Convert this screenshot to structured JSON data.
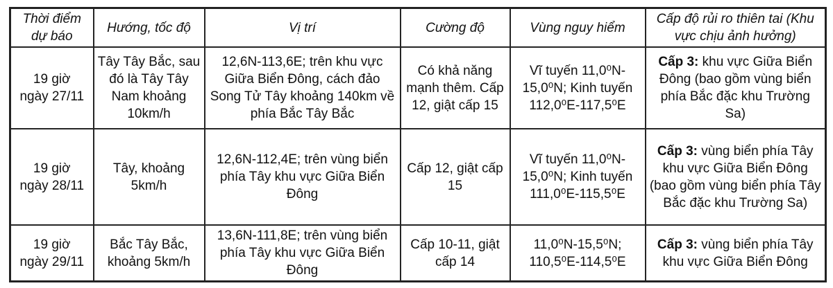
{
  "page": {
    "background_color": "#ffffff",
    "border_color": "#242424",
    "text_color": "#111111"
  },
  "table": {
    "columns": [
      "Thời điểm dự báo",
      "Hướng, tốc độ",
      "Vị trí",
      "Cường độ",
      "Vùng nguy hiểm",
      "Cấp độ rủi ro thiên tai (Khu vực chịu ảnh hưởng)"
    ],
    "rows": [
      {
        "time": "19 giờ\nngày 27/11",
        "direction": "Tây Tây Bắc, sau đó là Tây Tây Nam khoảng 10km/h",
        "position": "12,6N-113,6E; trên khu vực Giữa Biển Đông, cách đảo Song Tử Tây khoảng 140km về phía Bắc Tây Bắc",
        "intensity": "Có khả năng mạnh thêm. Cấp 12, giật cấp 15",
        "danger_zone": "Vĩ tuyến 11,0⁰N-15,0⁰N; Kinh tuyến 112,0⁰E-117,5⁰E",
        "risk_label": "Cấp 3:",
        "risk_text": "khu vực Giữa Biển Đông (bao gồm vùng biển phía Bắc đặc khu Trường Sa)"
      },
      {
        "time": "19 giờ\nngày 28/11",
        "direction": "Tây, khoảng 5km/h",
        "position": "12,6N-112,4E; trên vùng biển phía Tây khu vực Giữa Biển Đông",
        "intensity": "Cấp 12, giật cấp 15",
        "danger_zone": "Vĩ tuyến 11,0⁰N-15,0⁰N; Kinh tuyến 111,0⁰E-115,5⁰E",
        "risk_label": "Cấp 3:",
        "risk_text": "vùng biển phía Tây khu vực Giữa Biển Đông (bao gồm vùng biển phía Tây Bắc đặc khu Trường Sa)"
      },
      {
        "time": "19 giờ\nngày 29/11",
        "direction": "Bắc Tây Bắc, khoảng 5km/h",
        "position": "13,6N-111,8E; trên vùng biển phía Tây khu vực Giữa Biển Đông",
        "intensity": "Cấp 10-11, giật cấp 14",
        "danger_zone": "11,0⁰N-15,5⁰N; 110,5⁰E-114,5⁰E",
        "risk_label": "Cấp 3:",
        "risk_text": "vùng biển phía Tây khu vực Giữa Biển Đông"
      }
    ]
  }
}
